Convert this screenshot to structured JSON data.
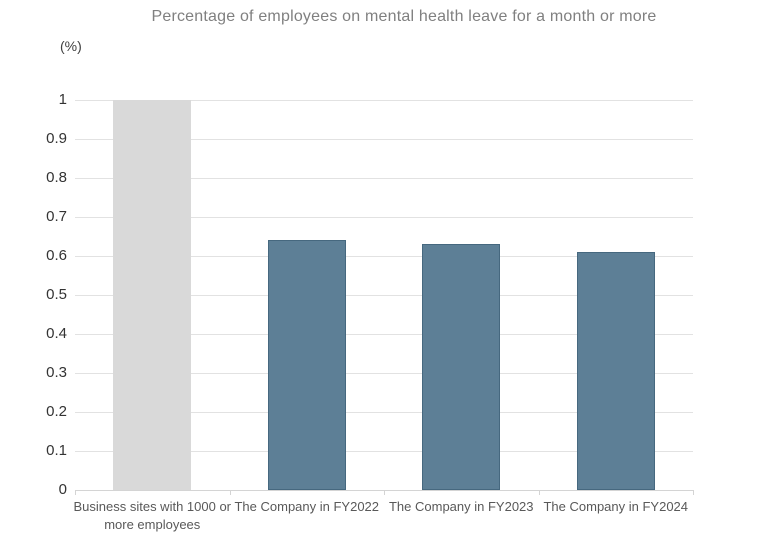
{
  "chart_data": {
    "type": "bar",
    "title": "Percentage of employees on mental health leave for a month or more",
    "unit_label": "(%)",
    "categories": [
      "Business sites with 1000 or more employees",
      "The Company in FY2022",
      "The Company in FY2023",
      "The Company in FY2024"
    ],
    "values": [
      1.0,
      0.64,
      0.63,
      0.61
    ],
    "bar_colors": [
      "#d9d9d9",
      "#5d7f96",
      "#5d7f96",
      "#5d7f96"
    ],
    "bar_border_colors": [
      "#d9d9d9",
      "#46687f",
      "#46687f",
      "#46687f"
    ],
    "xlabel": "",
    "ylabel": "(%)",
    "ylim": [
      0,
      1
    ],
    "yticks": [
      "0",
      "0.1",
      "0.2",
      "0.3",
      "0.4",
      "0.5",
      "0.6",
      "0.7",
      "0.8",
      "0.9",
      "1"
    ],
    "grid": true,
    "legend": "none"
  },
  "colors": {
    "title_color": "#808080",
    "unit_color": "#404040",
    "ytick_color": "#333333",
    "xtick_color": "#595959",
    "grid_color": "#e2e2e2",
    "axis_color": "#d4d4d4",
    "company_bar": "#5d7f96",
    "benchmark_bar": "#d9d9d9",
    "background": "#ffffff"
  }
}
